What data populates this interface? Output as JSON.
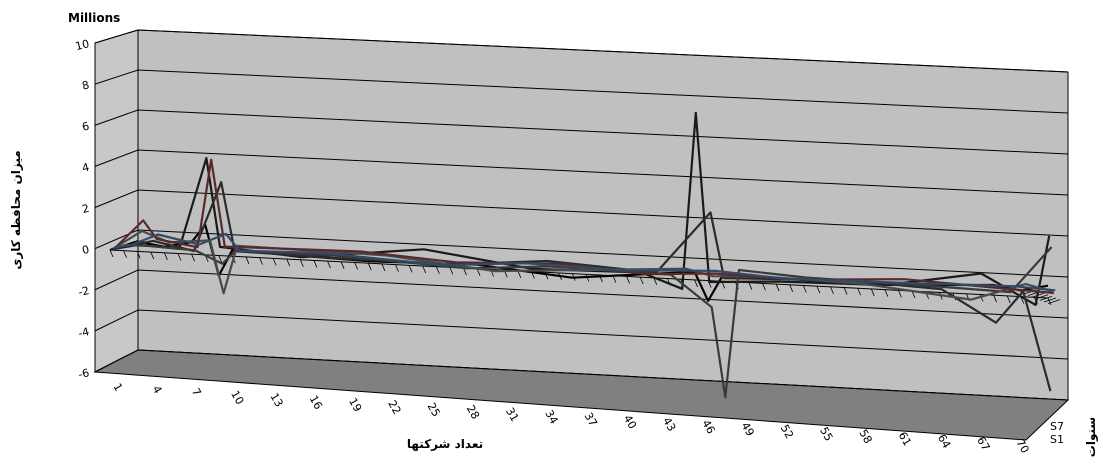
{
  "chart_data": {
    "type": "line",
    "title": "",
    "unit_label": "Millions",
    "ylabel": "میزان محافظه کاری",
    "xlabel": "تعداد شرکتها",
    "depth_axis_label": "سنوات",
    "depth_categories": [
      "S1",
      "S7"
    ],
    "ylim": [
      -6,
      10
    ],
    "y_ticks": [
      -6,
      -4,
      -2,
      0,
      2,
      4,
      6,
      8,
      10
    ],
    "x_ticks": [
      1,
      4,
      7,
      10,
      13,
      16,
      19,
      22,
      25,
      28,
      31,
      34,
      37,
      40,
      43,
      46,
      49,
      52,
      55,
      58,
      61,
      64,
      67,
      70
    ],
    "grid": true,
    "series": [
      {
        "color": "#000000",
        "points": [
          [
            1,
            0
          ],
          [
            3,
            0.5
          ],
          [
            5,
            0.3
          ],
          [
            7,
            0.6
          ],
          [
            8,
            1.5
          ],
          [
            9,
            -1
          ],
          [
            10,
            0.3
          ],
          [
            20,
            0.1
          ],
          [
            28,
            0.2
          ],
          [
            35,
            -0.2
          ],
          [
            44,
            0.4
          ],
          [
            45,
            -1
          ],
          [
            46,
            0.2
          ],
          [
            50,
            0.3
          ],
          [
            57,
            0.2
          ],
          [
            66,
            0.5
          ],
          [
            68,
            0.3
          ],
          [
            70,
            0.6
          ]
        ]
      },
      {
        "color": "#1a1a1a",
        "points": [
          [
            1,
            0
          ],
          [
            3,
            0.3
          ],
          [
            6,
            0.2
          ],
          [
            8,
            4.8
          ],
          [
            9,
            0.4
          ],
          [
            15,
            0.1
          ],
          [
            24,
            0.8
          ],
          [
            32,
            0.1
          ],
          [
            40,
            0.2
          ],
          [
            43,
            -0.5
          ],
          [
            44,
            8.2
          ],
          [
            45,
            -0.1
          ],
          [
            50,
            0.1
          ],
          [
            58,
            0.2
          ],
          [
            65,
            1.0
          ],
          [
            69,
            -0.4
          ],
          [
            70,
            3.0
          ]
        ]
      },
      {
        "color": "#2b2b2b",
        "points": [
          [
            1,
            0
          ],
          [
            4,
            0.5
          ],
          [
            7,
            0.1
          ],
          [
            9,
            3.6
          ],
          [
            10,
            0.2
          ],
          [
            18,
            0.1
          ],
          [
            26,
            0.1
          ],
          [
            33,
            0.5
          ],
          [
            41,
            0.2
          ],
          [
            45,
            3.3
          ],
          [
            46,
            0.1
          ],
          [
            55,
            0.3
          ],
          [
            62,
            0.1
          ],
          [
            66,
            -1.4
          ],
          [
            68,
            0.2
          ],
          [
            70,
            -4.6
          ]
        ]
      },
      {
        "color": "#3a3a3a",
        "points": [
          [
            1,
            0
          ],
          [
            2,
            0.2
          ],
          [
            4,
            0.2
          ],
          [
            7,
            0.1
          ],
          [
            9,
            -0.5
          ],
          [
            10,
            0.2
          ],
          [
            17,
            0.2
          ],
          [
            27,
            -0.1
          ],
          [
            33,
            0.2
          ],
          [
            42,
            0.1
          ],
          [
            45,
            -1.4
          ],
          [
            46,
            -5.8
          ],
          [
            47,
            0.5
          ],
          [
            52,
            0.3
          ],
          [
            61,
            0.2
          ],
          [
            67,
            0.1
          ],
          [
            70,
            2.4
          ]
        ]
      },
      {
        "color": "#4a4a4a",
        "points": [
          [
            1,
            0
          ],
          [
            3,
            0.9
          ],
          [
            5,
            0.4
          ],
          [
            8,
            0.6
          ],
          [
            9,
            -2.0
          ],
          [
            10,
            0.4
          ],
          [
            21,
            0.3
          ],
          [
            29,
            -0.2
          ],
          [
            36,
            0.1
          ],
          [
            43,
            0.4
          ],
          [
            45,
            0.1
          ],
          [
            49,
            0.2
          ],
          [
            56,
            0.1
          ],
          [
            64,
            -0.4
          ],
          [
            68,
            0.5
          ],
          [
            70,
            0.2
          ]
        ]
      },
      {
        "color": "#5a2a2a",
        "points": [
          [
            1,
            0
          ],
          [
            3,
            1.4
          ],
          [
            4,
            0.5
          ],
          [
            7,
            0.2
          ],
          [
            8,
            4.6
          ],
          [
            9,
            0.3
          ],
          [
            19,
            0.4
          ],
          [
            26,
            0.1
          ],
          [
            34,
            0.3
          ],
          [
            40,
            0.0
          ],
          [
            45,
            0.2
          ],
          [
            51,
            0.1
          ],
          [
            59,
            0.4
          ],
          [
            66,
            0.2
          ],
          [
            70,
            0.1
          ]
        ]
      },
      {
        "color": "#2f4a6a",
        "points": [
          [
            1,
            0
          ],
          [
            2,
            0.1
          ],
          [
            4,
            0.7
          ],
          [
            7,
            0.3
          ],
          [
            9,
            0.9
          ],
          [
            10,
            0.1
          ],
          [
            16,
            0.2
          ],
          [
            25,
            -0.1
          ],
          [
            31,
            0.2
          ],
          [
            38,
            0.1
          ],
          [
            45,
            0.3
          ],
          [
            50,
            0.1
          ],
          [
            60,
            0.2
          ],
          [
            67,
            0.3
          ],
          [
            70,
            0.2
          ]
        ]
      }
    ]
  }
}
